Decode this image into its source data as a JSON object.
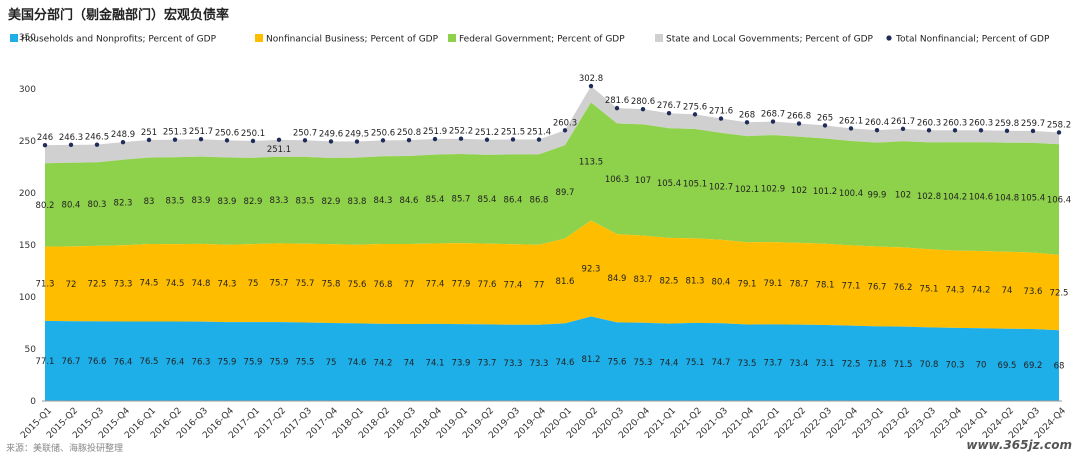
{
  "title": "美国分部门（剔金融部门）宏观负债率",
  "source": "来源：美联储、海豚投研整理",
  "watermark": "www.365jz.com",
  "chart_data": {
    "type": "area",
    "stacked": true,
    "categories": [
      "2015-Q1",
      "2015-Q2",
      "2015-Q3",
      "2015-Q4",
      "2016-Q1",
      "2016-Q2",
      "2016-Q3",
      "2016-Q4",
      "2017-Q1",
      "2017-Q2",
      "2017-Q3",
      "2017-Q4",
      "2018-Q1",
      "2018-Q2",
      "2018-Q3",
      "2018-Q4",
      "2019-Q1",
      "2019-Q2",
      "2019-Q3",
      "2019-Q4",
      "2020-Q1",
      "2020-Q2",
      "2020-Q3",
      "2020-Q4",
      "2021-Q1",
      "2021-Q2",
      "2021-Q3",
      "2021-Q4",
      "2022-Q1",
      "2022-Q2",
      "2022-Q3",
      "2022-Q4",
      "2023-Q1",
      "2023-Q2",
      "2023-Q3",
      "2023-Q4",
      "2024-Q1",
      "2024-Q2",
      "2024-Q3",
      "2024-Q4"
    ],
    "series": [
      {
        "name": "Households and Nonprofits; Percent of GDP",
        "color": "#1eaee8",
        "values": [
          77.1,
          76.7,
          76.6,
          76.4,
          76.5,
          76.4,
          76.3,
          75.9,
          75.9,
          75.9,
          75.5,
          75,
          74.6,
          74.2,
          74,
          74.1,
          73.9,
          73.7,
          73.3,
          73.3,
          74.6,
          81.2,
          75.6,
          75.3,
          74.4,
          75.1,
          74.7,
          73.5,
          73.7,
          73.4,
          73.1,
          72.5,
          71.8,
          71.5,
          70.8,
          70.3,
          70,
          69.5,
          69.2,
          68
        ]
      },
      {
        "name": "Nonfinancial Business; Percent of GDP",
        "color": "#ffbd00",
        "values": [
          71.3,
          72,
          72.5,
          73.3,
          74.5,
          74.5,
          74.8,
          74.3,
          75,
          75.7,
          75.7,
          75.8,
          75.6,
          76.8,
          77,
          77.4,
          77.9,
          77.6,
          77.4,
          77,
          81.6,
          92.3,
          84.9,
          83.7,
          82.5,
          81.3,
          80.4,
          79.1,
          79.1,
          78.7,
          78.1,
          77.1,
          76.7,
          76.2,
          75.1,
          74.3,
          74.2,
          74,
          73.6,
          72.5
        ]
      },
      {
        "name": "Federal Government; Percent of GDP",
        "color": "#8ed14a",
        "values": [
          80.2,
          80.4,
          80.3,
          82.3,
          83,
          83.5,
          83.9,
          83.9,
          82.9,
          83.3,
          83.5,
          82.9,
          83.8,
          84.3,
          84.6,
          85.4,
          85.7,
          85.4,
          86.4,
          86.8,
          89.7,
          113.5,
          106.3,
          107,
          105.4,
          105.1,
          102.7,
          102.1,
          102.9,
          102,
          101.2,
          100.4,
          99.9,
          102,
          102.8,
          104.2,
          104.6,
          104.8,
          105.4,
          106.4
        ]
      },
      {
        "name": "State and Local Governments; Percent of GDP",
        "color": "#d0d0d0"
      },
      {
        "name": "Total Nonfinancial; Percent of GDP",
        "color": "#1f2d5a",
        "type": "scatter",
        "values": [
          246,
          246.3,
          246.5,
          248.9,
          251,
          251.3,
          251.7,
          250.6,
          250.1,
          251.1,
          250.7,
          249.6,
          249.5,
          250.6,
          250.8,
          251.9,
          252.2,
          251.2,
          251.5,
          251.4,
          260.3,
          302.8,
          281.6,
          280.6,
          276.7,
          275.6,
          271.6,
          268,
          268.7,
          266.8,
          265,
          262.1,
          260.4,
          261.7,
          260.3,
          260.3,
          260.3,
          259.8,
          259.7,
          258.2
        ]
      }
    ],
    "y_ticks": [
      "0",
      "50",
      "100",
      "150",
      "200",
      "250",
      "300",
      "350"
    ],
    "ylim": [
      0,
      350
    ],
    "grid": false,
    "legend_position": "top"
  }
}
